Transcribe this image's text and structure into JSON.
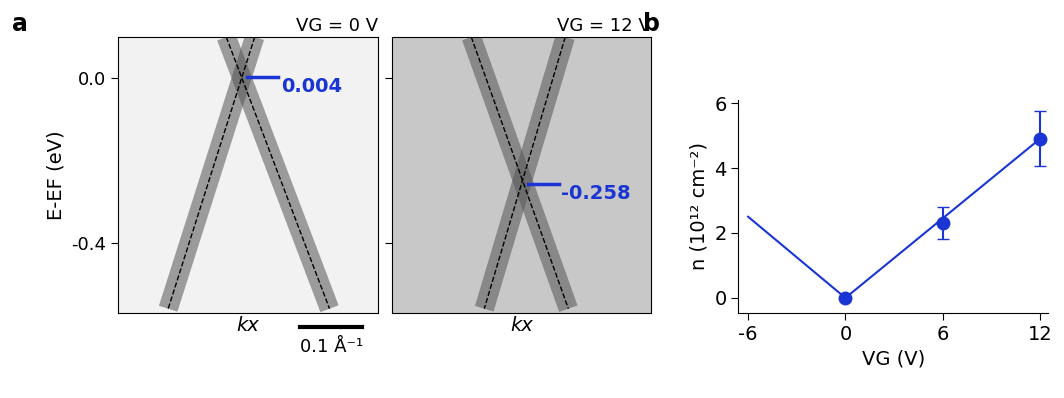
{
  "chart_data": [
    {
      "type": "image_lines",
      "panel": "a",
      "title": "VG = 0 V",
      "xlabel": "kx",
      "ylabel": "E-EF (eV)",
      "xlim": [
        -0.21,
        0.21
      ],
      "ylim": [
        -0.57,
        0.1
      ],
      "yticks": [
        {
          "value": 0.0,
          "label": "0.0"
        },
        {
          "value": -0.4,
          "label": "-0.4"
        }
      ],
      "tick_labels": "y",
      "line_style": "dashed",
      "color": "#000000",
      "lines": [
        {
          "x": [
            0.011,
            -0.129
          ],
          "y": [
            0.1,
            -0.56
          ]
        },
        {
          "x": [
            -0.035,
            0.132
          ],
          "y": [
            0.1,
            -0.56
          ]
        }
      ],
      "annotations": [
        {
          "text": "0.004",
          "value": 0.004,
          "color": "#1a35d4"
        }
      ],
      "scale_bar": {
        "length": 0.1,
        "label": "0.1 Å⁻¹"
      }
    },
    {
      "type": "image_lines",
      "title": "VG = 12 V",
      "xlabel": "kx",
      "xlim": [
        -0.21,
        0.21
      ],
      "ylim": [
        -0.57,
        0.1
      ],
      "yticks": [
        {
          "value": 0.0,
          "label": "0.0"
        },
        {
          "value": -0.4,
          "label": "-0.4"
        }
      ],
      "tick_labels": false,
      "line_style": "dashed",
      "color": "#000000",
      "lines": [
        {
          "x": [
            -0.081,
            0.076
          ],
          "y": [
            0.1,
            -0.56
          ]
        },
        {
          "x": [
            0.071,
            -0.06
          ],
          "y": [
            0.1,
            -0.56
          ]
        }
      ],
      "annotations": [
        {
          "text": "-0.258",
          "value": -0.258,
          "color": "#1a35d4"
        }
      ]
    },
    {
      "type": "scatter",
      "panel": "b",
      "xlabel": "VG (V)",
      "ylabel": "n (10¹² cm⁻²)",
      "x": [
        0,
        6,
        12
      ],
      "values": [
        0,
        2.3,
        4.9
      ],
      "errors": [
        0,
        0.5,
        0.85
      ],
      "color": "#1a35d4",
      "marker": "circle",
      "fit": {
        "x": [
          -6,
          0,
          12
        ],
        "values": [
          2.5,
          0,
          4.9
        ]
      },
      "xlim": [
        -6.6,
        12.5
      ],
      "ylim": [
        -0.46,
        6.1
      ],
      "xticks": [
        -6,
        0,
        6,
        12
      ],
      "yticks": [
        0,
        2,
        4,
        6
      ]
    }
  ]
}
